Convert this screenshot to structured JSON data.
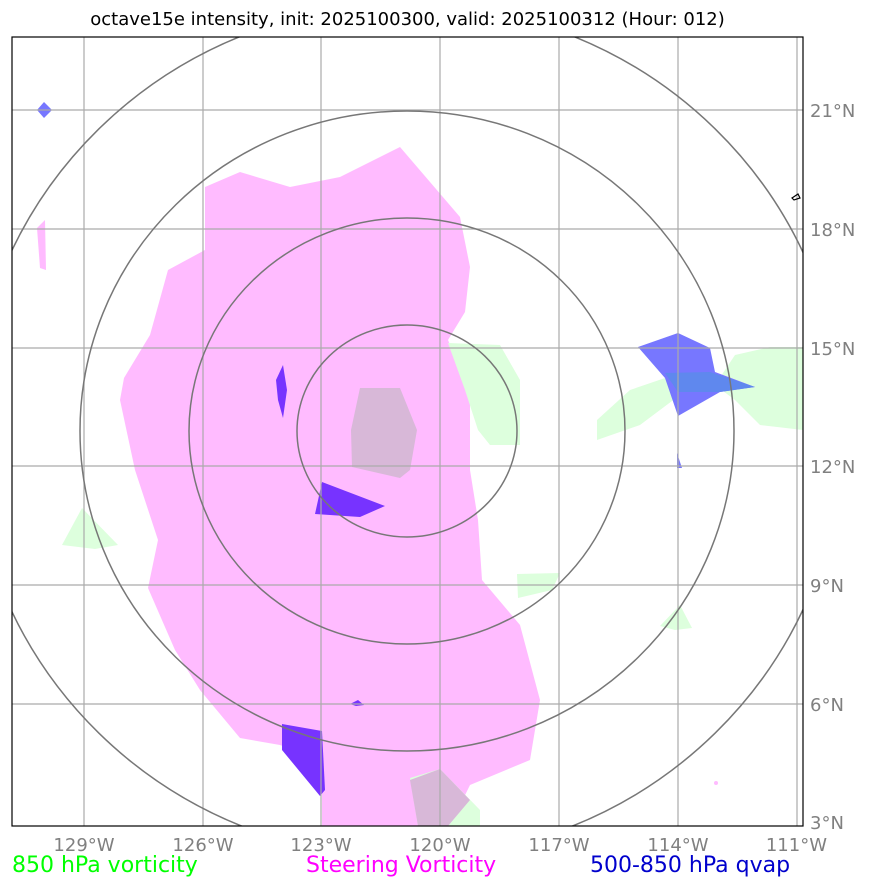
{
  "title": "octave15e intensity, init: 2025100300, valid: 2025100312 (Hour: 012)",
  "colors": {
    "steering": "#ffbbff",
    "vort850": "#ddffdd",
    "qvap": "#7777ff",
    "qvap_dark": "#7733ff",
    "overlap": "#d8b8d8",
    "rings": "#777777",
    "grid": "#aaaaaa"
  },
  "map": {
    "lat_labels": [
      "21°N",
      "18°N",
      "15°N",
      "12°N",
      "9°N",
      "6°N",
      "3°N"
    ],
    "lon_labels": [
      "129°W",
      "126°W",
      "123°W",
      "120°W",
      "117°W",
      "114°W",
      "111°W"
    ]
  },
  "legend": {
    "vort850": "850 hPa vorticity",
    "steering": "Steering Vorticity",
    "qvap": "500-850 hPa qvap"
  }
}
